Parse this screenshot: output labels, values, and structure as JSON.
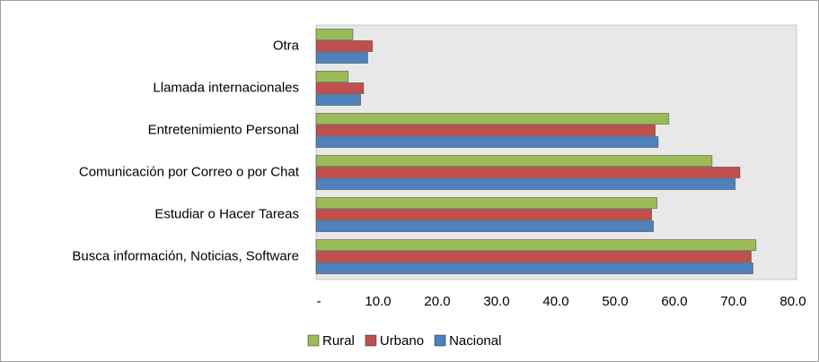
{
  "chart_data": {
    "type": "hbar",
    "categories": [
      "Otra",
      "Llamada internacionales",
      "Entretenimiento Personal",
      "Comunicación por Correo o  por Chat",
      "Estudiar o Hacer Tareas",
      "Busca información, Noticias,  Software"
    ],
    "series": [
      {
        "name": "Rural",
        "color": "#9bbb59",
        "values": [
          6.2,
          5.4,
          59.5,
          66.8,
          57.5,
          74.2
        ]
      },
      {
        "name": "Urbano",
        "color": "#c0504d",
        "values": [
          9.5,
          8.0,
          57.2,
          71.5,
          56.6,
          73.4
        ]
      },
      {
        "name": "Nacional",
        "color": "#4f81bd",
        "values": [
          8.7,
          7.5,
          57.7,
          70.7,
          56.9,
          73.7
        ]
      }
    ],
    "xlim": [
      0,
      80
    ],
    "xticks": [
      {
        "value": 0,
        "label": "-"
      },
      {
        "value": 10,
        "label": "10.0"
      },
      {
        "value": 20,
        "label": "20.0"
      },
      {
        "value": 30,
        "label": "30.0"
      },
      {
        "value": 40,
        "label": "40.0"
      },
      {
        "value": 50,
        "label": "50.0"
      },
      {
        "value": 60,
        "label": "60.0"
      },
      {
        "value": 70,
        "label": "70.0"
      },
      {
        "value": 80,
        "label": "80.0"
      }
    ],
    "legend": "bottom-left"
  }
}
